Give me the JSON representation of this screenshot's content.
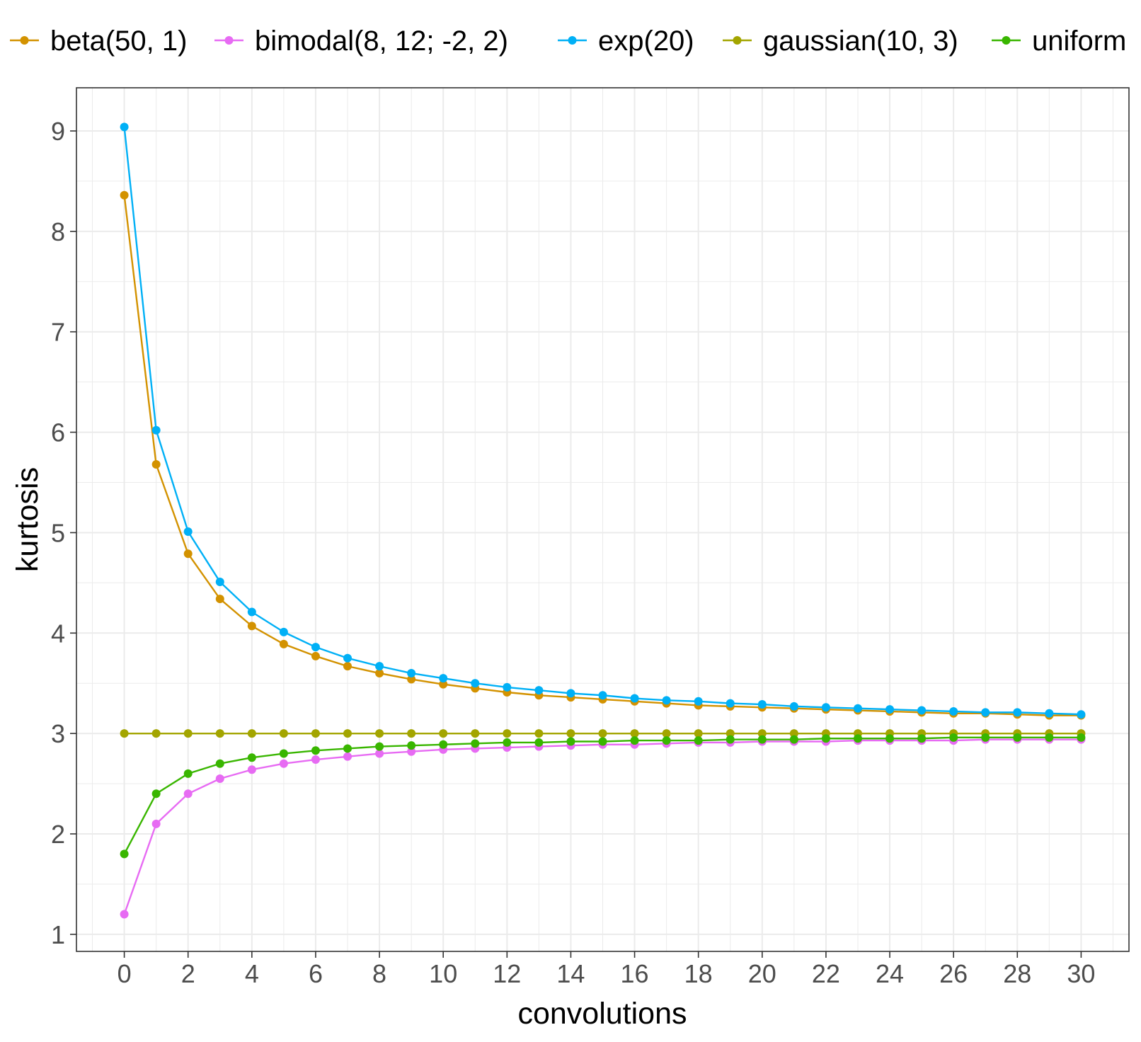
{
  "chart_data": {
    "type": "line",
    "xlabel": "convolutions",
    "ylabel": "kurtosis",
    "xlim": [
      -1.5,
      31.5
    ],
    "ylim": [
      0.83,
      9.43
    ],
    "x_ticks": [
      0,
      2,
      4,
      6,
      8,
      10,
      12,
      14,
      16,
      18,
      20,
      22,
      24,
      26,
      28,
      30
    ],
    "y_ticks": [
      1,
      2,
      3,
      4,
      5,
      6,
      7,
      8,
      9
    ],
    "grid": true,
    "legend_position": "top",
    "x": [
      0,
      1,
      2,
      3,
      4,
      5,
      6,
      7,
      8,
      9,
      10,
      11,
      12,
      13,
      14,
      15,
      16,
      17,
      18,
      19,
      20,
      21,
      22,
      23,
      24,
      25,
      26,
      27,
      28,
      29,
      30
    ],
    "series": [
      {
        "name": "beta(50, 1)",
        "color": "#d39200",
        "values": [
          8.36,
          5.68,
          4.79,
          4.34,
          4.07,
          3.89,
          3.77,
          3.67,
          3.6,
          3.54,
          3.49,
          3.45,
          3.41,
          3.38,
          3.36,
          3.34,
          3.32,
          3.3,
          3.28,
          3.27,
          3.26,
          3.25,
          3.24,
          3.23,
          3.22,
          3.21,
          3.2,
          3.2,
          3.19,
          3.18,
          3.18
        ]
      },
      {
        "name": "bimodal(8, 12; -2, 2)",
        "color": "#e76bf3",
        "values": [
          1.2,
          2.1,
          2.4,
          2.55,
          2.64,
          2.7,
          2.74,
          2.77,
          2.8,
          2.82,
          2.84,
          2.85,
          2.86,
          2.87,
          2.88,
          2.89,
          2.89,
          2.9,
          2.91,
          2.91,
          2.92,
          2.92,
          2.92,
          2.93,
          2.93,
          2.93,
          2.93,
          2.94,
          2.94,
          2.94,
          2.94
        ]
      },
      {
        "name": "exp(20)",
        "color": "#00b0f6",
        "values": [
          9.04,
          6.02,
          5.01,
          4.51,
          4.21,
          4.01,
          3.86,
          3.75,
          3.67,
          3.6,
          3.55,
          3.5,
          3.46,
          3.43,
          3.4,
          3.38,
          3.35,
          3.33,
          3.32,
          3.3,
          3.29,
          3.27,
          3.26,
          3.25,
          3.24,
          3.23,
          3.22,
          3.21,
          3.21,
          3.2,
          3.19
        ]
      },
      {
        "name": "gaussian(10, 3)",
        "color": "#a3a500",
        "values": [
          3,
          3,
          3,
          3,
          3,
          3,
          3,
          3,
          3,
          3,
          3,
          3,
          3,
          3,
          3,
          3,
          3,
          3,
          3,
          3,
          3,
          3,
          3,
          3,
          3,
          3,
          3,
          3,
          3,
          3,
          3
        ]
      },
      {
        "name": "uniform",
        "color": "#39b600",
        "values": [
          1.8,
          2.4,
          2.6,
          2.7,
          2.76,
          2.8,
          2.83,
          2.85,
          2.87,
          2.88,
          2.89,
          2.9,
          2.91,
          2.91,
          2.92,
          2.92,
          2.93,
          2.93,
          2.93,
          2.94,
          2.94,
          2.94,
          2.95,
          2.95,
          2.95,
          2.95,
          2.96,
          2.96,
          2.96,
          2.96,
          2.96
        ]
      }
    ]
  }
}
